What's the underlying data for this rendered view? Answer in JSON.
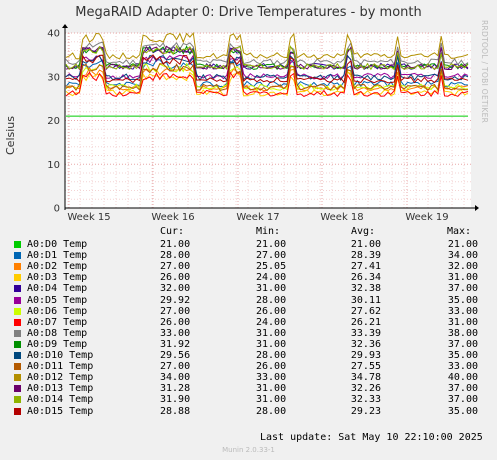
{
  "chart_data": {
    "type": "line",
    "title": "MegaRAID Adapter 0: Drive Temperatures - by month",
    "ylabel": "Celsius",
    "ylim": [
      0,
      40
    ],
    "yticks": [
      0,
      10,
      20,
      30,
      40
    ],
    "x_ticks": [
      "Week 15",
      "Week 16",
      "Week 17",
      "Week 18",
      "Week 19"
    ],
    "grid": true,
    "series": [
      {
        "name": "A0:D0 Temp",
        "color": "#00cc00",
        "cur": "21.00",
        "min": "21.00",
        "avg": "21.00",
        "max": "21.00"
      },
      {
        "name": "A0:D1 Temp",
        "color": "#0066b3",
        "cur": "28.00",
        "min": "27.00",
        "avg": "28.39",
        "max": "34.00"
      },
      {
        "name": "A0:D2 Temp",
        "color": "#ff8000",
        "cur": "27.00",
        "min": "25.05",
        "avg": "27.41",
        "max": "32.00"
      },
      {
        "name": "A0:D3 Temp",
        "color": "#ffcc00",
        "cur": "26.00",
        "min": "24.00",
        "avg": "26.34",
        "max": "31.00"
      },
      {
        "name": "A0:D4 Temp",
        "color": "#330099",
        "cur": "32.00",
        "min": "31.00",
        "avg": "32.38",
        "max": "37.00"
      },
      {
        "name": "A0:D5 Temp",
        "color": "#990099",
        "cur": "29.92",
        "min": "28.00",
        "avg": "30.11",
        "max": "35.00"
      },
      {
        "name": "A0:D6 Temp",
        "color": "#ccff00",
        "cur": "27.00",
        "min": "26.00",
        "avg": "27.62",
        "max": "33.00"
      },
      {
        "name": "A0:D7 Temp",
        "color": "#ff0000",
        "cur": "26.00",
        "min": "24.00",
        "avg": "26.21",
        "max": "31.00"
      },
      {
        "name": "A0:D8 Temp",
        "color": "#808080",
        "cur": "33.00",
        "min": "31.00",
        "avg": "33.39",
        "max": "38.00"
      },
      {
        "name": "A0:D9 Temp",
        "color": "#008f00",
        "cur": "31.92",
        "min": "31.00",
        "avg": "32.36",
        "max": "37.00"
      },
      {
        "name": "A0:D10 Temp",
        "color": "#00487d",
        "cur": "29.56",
        "min": "28.00",
        "avg": "29.93",
        "max": "35.00"
      },
      {
        "name": "A0:D11 Temp",
        "color": "#b35a00",
        "cur": "27.00",
        "min": "26.00",
        "avg": "27.55",
        "max": "33.00"
      },
      {
        "name": "A0:D12 Temp",
        "color": "#b38f00",
        "cur": "34.00",
        "min": "33.00",
        "avg": "34.78",
        "max": "40.00"
      },
      {
        "name": "A0:D13 Temp",
        "color": "#6b006b",
        "cur": "31.28",
        "min": "31.00",
        "avg": "32.26",
        "max": "37.00"
      },
      {
        "name": "A0:D14 Temp",
        "color": "#8fb300",
        "cur": "31.90",
        "min": "31.00",
        "avg": "32.33",
        "max": "37.00"
      },
      {
        "name": "A0:D15 Temp",
        "color": "#b30000",
        "cur": "28.88",
        "min": "28.00",
        "avg": "29.23",
        "max": "35.00"
      }
    ]
  },
  "legend_headers": {
    "cur": "Cur:",
    "min": "Min:",
    "avg": "Avg:",
    "max": "Max:"
  },
  "side_label": "RRDTOOL / TOBI OETIKER",
  "last_update": "Last update:  Sat May 10 22:10:00 2025",
  "munin_version": "Munin 2.0.33-1"
}
